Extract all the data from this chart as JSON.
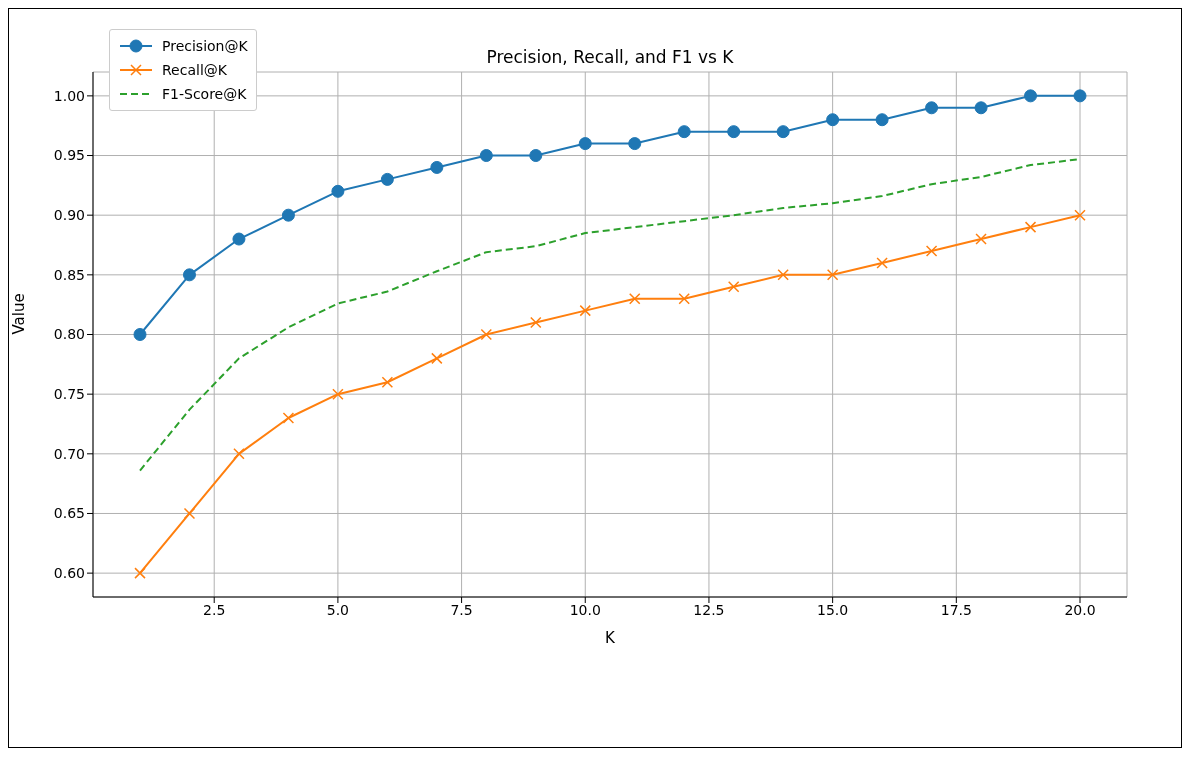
{
  "chart_data": {
    "type": "line",
    "title": "Precision, Recall, and F1 vs K",
    "xlabel": "K",
    "ylabel": "Value",
    "x": [
      1,
      2,
      3,
      4,
      5,
      6,
      7,
      8,
      9,
      10,
      11,
      12,
      13,
      14,
      15,
      16,
      17,
      18,
      19,
      20
    ],
    "series": [
      {
        "name": "Precision@K",
        "color": "#1f77b4",
        "marker": "circle",
        "line_style": "solid",
        "values": [
          0.8,
          0.85,
          0.88,
          0.9,
          0.92,
          0.93,
          0.94,
          0.95,
          0.95,
          0.96,
          0.96,
          0.97,
          0.97,
          0.97,
          0.98,
          0.98,
          0.99,
          0.99,
          1.0,
          1.0
        ]
      },
      {
        "name": "Recall@K",
        "color": "#ff7f0e",
        "marker": "cross",
        "line_style": "solid",
        "values": [
          0.6,
          0.65,
          0.7,
          0.73,
          0.75,
          0.76,
          0.78,
          0.8,
          0.81,
          0.82,
          0.83,
          0.83,
          0.84,
          0.85,
          0.85,
          0.86,
          0.87,
          0.88,
          0.89,
          0.9
        ]
      },
      {
        "name": "F1-Score@K",
        "color": "#2ca02c",
        "marker": "none",
        "line_style": "dashed",
        "values": [
          0.686,
          0.737,
          0.78,
          0.806,
          0.826,
          0.836,
          0.853,
          0.869,
          0.874,
          0.885,
          0.89,
          0.895,
          0.9,
          0.906,
          0.91,
          0.916,
          0.926,
          0.932,
          0.942,
          0.947
        ]
      }
    ],
    "xlim": [
      0.05,
      20.95
    ],
    "xticks": [
      2.5,
      {
        "value": 5,
        "label": "5.0"
      },
      7.5,
      {
        "value": 10,
        "label": "10.0"
      },
      12.5,
      {
        "value": 15,
        "label": "15.0"
      },
      17.5,
      {
        "value": 20,
        "label": "20.0"
      }
    ],
    "ylim": [
      0.58,
      1.02
    ],
    "yticks": [
      {
        "value": 0.6,
        "label": "0.60"
      },
      0.65,
      {
        "value": 0.7,
        "label": "0.70"
      },
      0.75,
      {
        "value": 0.8,
        "label": "0.80"
      },
      0.85,
      {
        "value": 0.9,
        "label": "0.90"
      },
      0.95,
      {
        "value": 1,
        "label": "1.00"
      }
    ],
    "grid": true,
    "legend": "top left"
  }
}
